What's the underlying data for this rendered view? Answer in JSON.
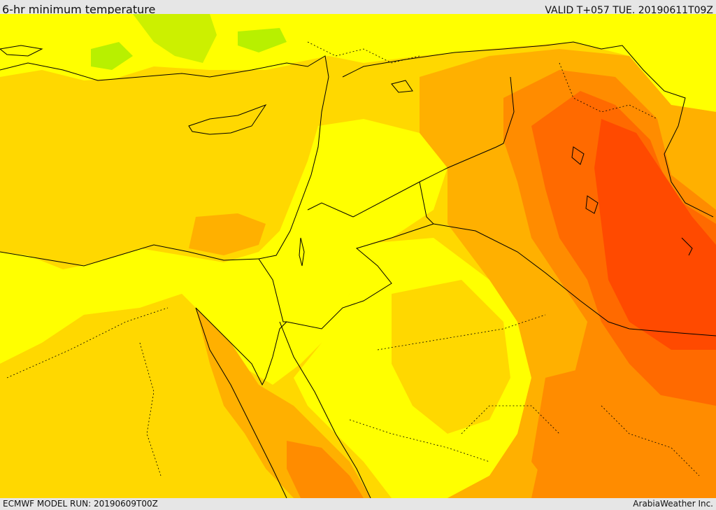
{
  "header": {
    "title": "6-hr minimum temperature",
    "valid_time": "VALID T+057 TUE. 20190611T09Z"
  },
  "footer": {
    "model_run": "ECMWF MODEL RUN: 20190609T00Z",
    "credit": "ArabiaWeather Inc."
  },
  "map": {
    "field": "6-hr minimum temperature",
    "palette": {
      "cool_green": "#b8f000",
      "pale_green": "#ccf000",
      "yellow": "#ffff00",
      "gold": "#ffd800",
      "amber": "#ffb000",
      "orange": "#ff8c00",
      "dark_orange": "#ff6a00",
      "red_orange": "#ff4a00"
    },
    "border_color": "#000000"
  }
}
